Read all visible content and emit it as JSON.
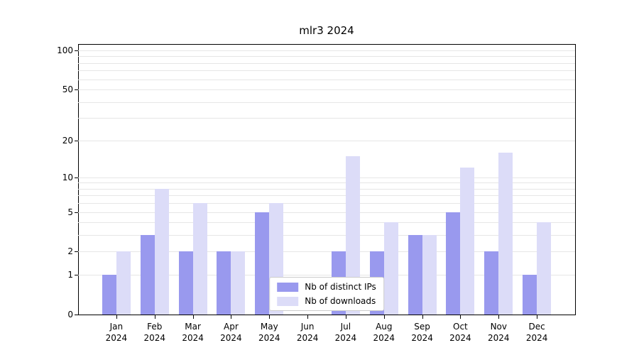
{
  "chart_data": {
    "type": "bar",
    "title": "mlr3 2024",
    "scale": "log1p",
    "grid": true,
    "legend_position": "lower center",
    "categories": [
      "Jan",
      "Feb",
      "Mar",
      "Apr",
      "May",
      "Jun",
      "Jul",
      "Aug",
      "Sep",
      "Oct",
      "Nov",
      "Dec"
    ],
    "category_year": "2024",
    "yticks": [
      0,
      1,
      2,
      5,
      10,
      20,
      50,
      100
    ],
    "gridlines": [
      1,
      2,
      3,
      4,
      5,
      6,
      7,
      8,
      9,
      10,
      20,
      30,
      40,
      50,
      60,
      70,
      80,
      90,
      100
    ],
    "ylim": [
      0,
      112
    ],
    "series": [
      {
        "name": "Nb of distinct IPs",
        "color": "#9999ee",
        "values": [
          1,
          3,
          2,
          2,
          5,
          0,
          2,
          2,
          3,
          5,
          2,
          1
        ]
      },
      {
        "name": "Nb of downloads",
        "color": "#dcdcf8",
        "values": [
          2,
          8,
          6,
          2,
          6,
          0,
          15,
          4,
          3,
          12,
          16,
          4
        ]
      }
    ]
  },
  "colors": {
    "axis": "#000000",
    "gridline": "#e6e6e6",
    "background": "#ffffff",
    "legend_border": "#cccccc"
  }
}
